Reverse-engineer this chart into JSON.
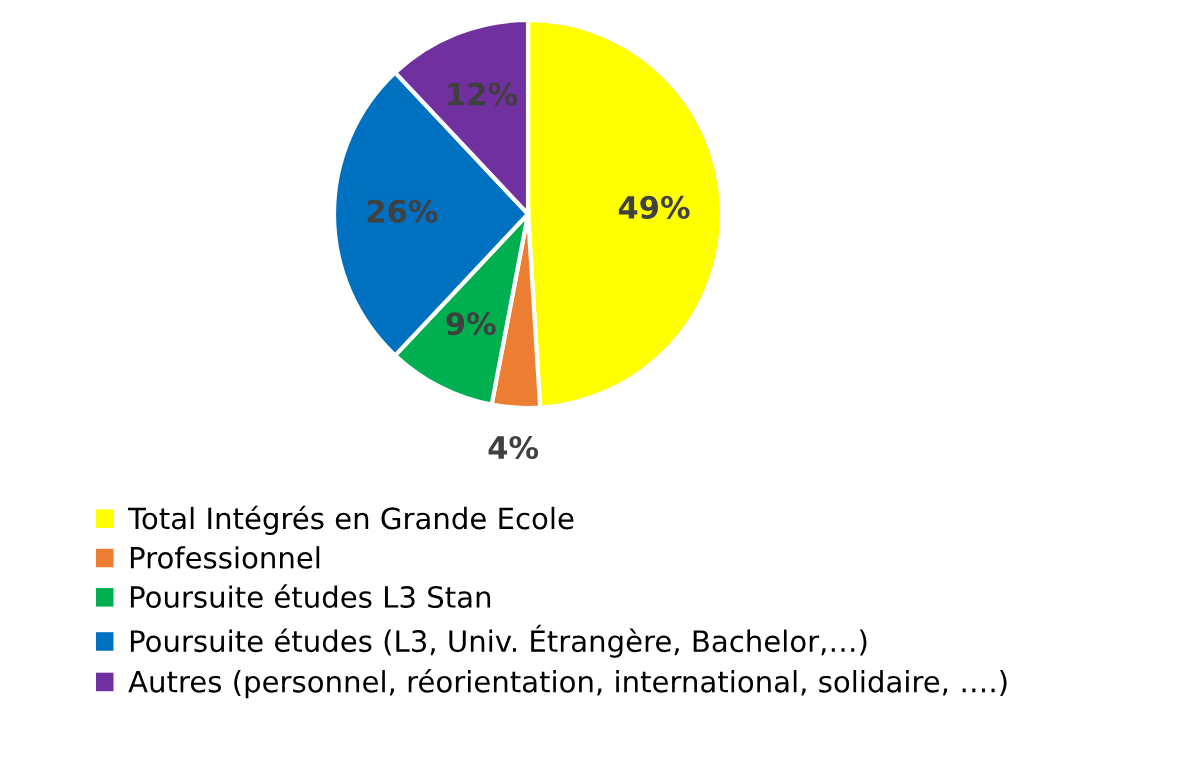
{
  "chart_data": {
    "type": "pie",
    "categories": [
      "Total Intégrés en Grande Ecole",
      "Professionnel",
      "Poursuite études L3 Stan",
      "Poursuite études (L3, Univ. Étrangère, Bachelor,…)",
      "Autres (personnel, réorientation, international, solidaire, ….)"
    ],
    "values": [
      49,
      4,
      9,
      26,
      12
    ],
    "colors": [
      "#ffff00",
      "#ed7d31",
      "#00b050",
      "#0070c0",
      "#7030a0"
    ],
    "value_labels": [
      "49%",
      "4%",
      "9%",
      "26%",
      "12%"
    ],
    "legend": "bottom"
  }
}
